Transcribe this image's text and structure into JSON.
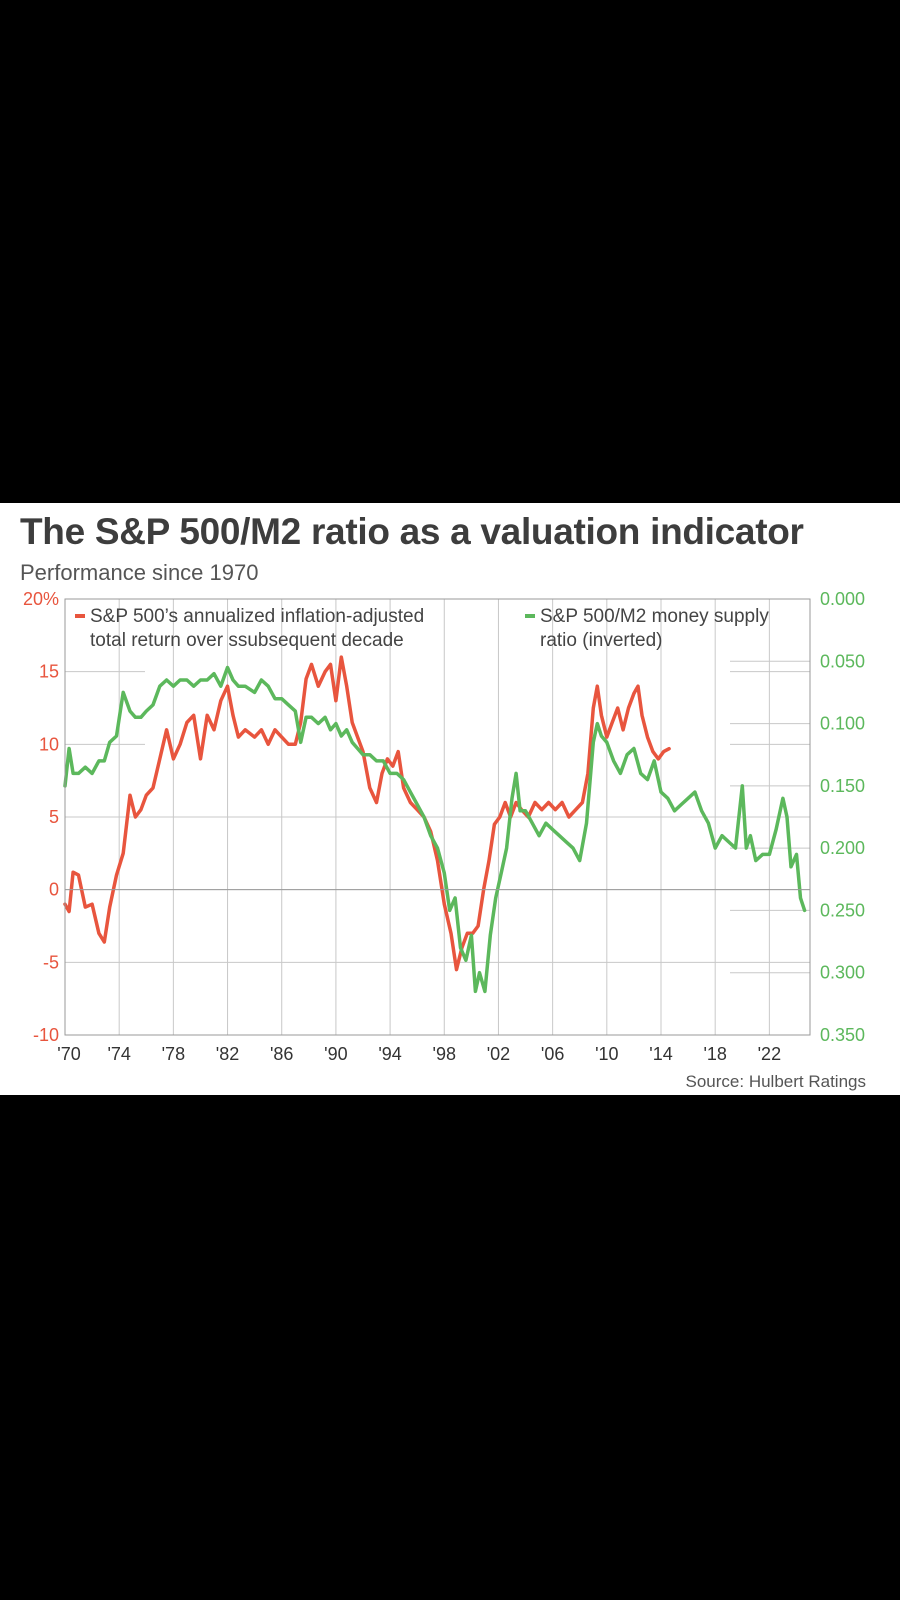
{
  "title": "The S&P 500/M2 ratio as a valuation indicator",
  "subtitle": "Performance since 1970",
  "source": "Source: Hulbert Ratings",
  "colors": {
    "red": "#e8553e",
    "green": "#5cb85c",
    "grid": "#c8c8c8",
    "axis": "#999999"
  },
  "chart_data": {
    "type": "line",
    "title": "The S&P 500/M2 ratio as a valuation indicator",
    "subtitle": "Performance since 1970",
    "x_axis": {
      "range": [
        1970,
        2025
      ],
      "ticks": [
        1970,
        1974,
        1978,
        1982,
        1986,
        1990,
        1994,
        1998,
        2002,
        2006,
        2010,
        2014,
        2018,
        2022
      ],
      "tick_labels": [
        "'70",
        "'74",
        "'78",
        "'82",
        "'86",
        "'90",
        "'94",
        "'98",
        "'02",
        "'06",
        "'10",
        "'14",
        "'18",
        "'22"
      ]
    },
    "y_left": {
      "range": [
        -10,
        20
      ],
      "ticks": [
        20,
        15,
        10,
        5,
        0,
        -5,
        -10
      ],
      "tick_labels": [
        "20%",
        "15",
        "10",
        "5",
        "0",
        "-5",
        "-10"
      ]
    },
    "y_right": {
      "range": [
        0.0,
        0.35
      ],
      "inverted": true,
      "ticks": [
        0.0,
        0.05,
        0.1,
        0.15,
        0.2,
        0.25,
        0.3,
        0.35
      ],
      "tick_labels": [
        "0.000",
        "0.050",
        "0.100",
        "0.150",
        "0.200",
        "0.250",
        "0.300",
        "0.350"
      ]
    },
    "grid": "vertical at x ticks, partial horizontal",
    "legend_placement": "top",
    "series": [
      {
        "name": "S&P 500's annualized inflation-adjusted total return over ssubsequent decade",
        "legend_lines": [
          "S&P 500’s annualized inflation-adjusted",
          "total return over ssubsequent decade"
        ],
        "axis": "left",
        "color": "#e8553e",
        "x": [
          1970.0,
          1970.3,
          1970.6,
          1971.0,
          1971.5,
          1972.0,
          1972.5,
          1972.9,
          1973.3,
          1973.8,
          1974.3,
          1974.8,
          1975.2,
          1975.6,
          1976.0,
          1976.5,
          1977.0,
          1977.5,
          1978.0,
          1978.5,
          1979.0,
          1979.5,
          1980.0,
          1980.5,
          1981.0,
          1981.5,
          1982.0,
          1982.4,
          1982.8,
          1983.3,
          1984.0,
          1984.5,
          1985.0,
          1985.5,
          1986.0,
          1986.5,
          1987.0,
          1987.4,
          1987.8,
          1988.2,
          1988.7,
          1989.2,
          1989.6,
          1990.0,
          1990.4,
          1990.8,
          1991.2,
          1991.6,
          1992.0,
          1992.5,
          1993.0,
          1993.4,
          1993.8,
          1994.2,
          1994.6,
          1995.0,
          1995.5,
          1996.0,
          1996.5,
          1997.0,
          1997.5,
          1998.0,
          1998.5,
          1998.9,
          1999.3,
          1999.7,
          2000.1,
          2000.5,
          2000.9,
          2001.3,
          2001.7,
          2002.1,
          2002.5,
          2002.9,
          2003.3,
          2003.7,
          2004.2,
          2004.7,
          2005.2,
          2005.7,
          2006.2,
          2006.7,
          2007.2,
          2007.7,
          2008.2,
          2008.6,
          2009.0,
          2009.3,
          2009.6,
          2010.0,
          2010.4,
          2010.8,
          2011.2,
          2011.6,
          2012.0,
          2012.3,
          2012.6,
          2013.0,
          2013.4,
          2013.8,
          2014.2,
          2014.6
        ],
        "y": [
          -1.0,
          -1.5,
          1.2,
          1.0,
          -1.2,
          -1.0,
          -3.0,
          -3.6,
          -1.2,
          1.0,
          2.5,
          6.5,
          5.0,
          5.5,
          6.5,
          7.0,
          9.0,
          11.0,
          9.0,
          10.0,
          11.5,
          12.0,
          9.0,
          12.0,
          11.0,
          13.0,
          14.0,
          12.0,
          10.5,
          11.0,
          10.5,
          11.0,
          10.0,
          11.0,
          10.5,
          10.0,
          10.0,
          11.5,
          14.5,
          15.5,
          14.0,
          15.0,
          15.5,
          13.0,
          16.0,
          14.0,
          11.5,
          10.5,
          9.5,
          7.0,
          6.0,
          8.0,
          9.0,
          8.5,
          9.5,
          7.0,
          6.0,
          5.5,
          5.0,
          4.0,
          2.0,
          -1.0,
          -3.0,
          -5.5,
          -4.0,
          -3.0,
          -3.0,
          -2.5,
          0.0,
          2.0,
          4.5,
          5.0,
          6.0,
          5.0,
          6.0,
          5.5,
          5.0,
          6.0,
          5.5,
          6.0,
          5.5,
          6.0,
          5.0,
          5.5,
          6.0,
          8.0,
          12.5,
          14.0,
          12.0,
          10.5,
          11.5,
          12.5,
          11.0,
          12.5,
          13.5,
          14.0,
          12.0,
          10.5,
          9.5,
          9.0,
          9.5,
          9.7
        ]
      },
      {
        "name": "S&P 500/M2 money supply ratio (inverted)",
        "legend_lines": [
          "S&P 500/M2 money supply",
          "ratio (inverted)"
        ],
        "axis": "right",
        "color": "#5cb85c",
        "x": [
          1970.0,
          1970.3,
          1970.6,
          1971.0,
          1971.5,
          1972.0,
          1972.5,
          1972.9,
          1973.3,
          1973.8,
          1974.3,
          1974.8,
          1975.2,
          1975.6,
          1976.0,
          1976.5,
          1977.0,
          1977.5,
          1978.0,
          1978.5,
          1979.0,
          1979.5,
          1980.0,
          1980.5,
          1981.0,
          1981.5,
          1982.0,
          1982.4,
          1982.8,
          1983.3,
          1984.0,
          1984.5,
          1985.0,
          1985.5,
          1986.0,
          1986.5,
          1987.0,
          1987.4,
          1987.8,
          1988.2,
          1988.7,
          1989.2,
          1989.6,
          1990.0,
          1990.4,
          1990.8,
          1991.2,
          1991.6,
          1992.0,
          1992.5,
          1993.0,
          1993.5,
          1994.0,
          1994.5,
          1995.0,
          1995.5,
          1996.0,
          1996.5,
          1997.0,
          1997.5,
          1998.0,
          1998.4,
          1998.8,
          1999.2,
          1999.6,
          2000.0,
          2000.3,
          2000.6,
          2001.0,
          2001.4,
          2001.8,
          2002.2,
          2002.6,
          2003.0,
          2003.3,
          2003.6,
          2004.0,
          2004.5,
          2005.0,
          2005.5,
          2006.0,
          2006.5,
          2007.0,
          2007.5,
          2008.0,
          2008.5,
          2009.0,
          2009.3,
          2009.6,
          2010.0,
          2010.5,
          2011.0,
          2011.5,
          2012.0,
          2012.5,
          2013.0,
          2013.5,
          2014.0,
          2014.5,
          2015.0,
          2015.5,
          2016.0,
          2016.5,
          2017.0,
          2017.5,
          2018.0,
          2018.5,
          2019.0,
          2019.5,
          2020.0,
          2020.3,
          2020.6,
          2021.0,
          2021.5,
          2022.0,
          2022.5,
          2023.0,
          2023.3,
          2023.6,
          2024.0,
          2024.3,
          2024.6
        ],
        "y": [
          0.15,
          0.12,
          0.14,
          0.14,
          0.135,
          0.14,
          0.13,
          0.13,
          0.115,
          0.11,
          0.075,
          0.09,
          0.095,
          0.095,
          0.09,
          0.085,
          0.07,
          0.065,
          0.07,
          0.065,
          0.065,
          0.07,
          0.065,
          0.065,
          0.06,
          0.07,
          0.055,
          0.065,
          0.07,
          0.07,
          0.075,
          0.065,
          0.07,
          0.08,
          0.08,
          0.085,
          0.09,
          0.115,
          0.095,
          0.095,
          0.1,
          0.095,
          0.105,
          0.1,
          0.11,
          0.105,
          0.115,
          0.12,
          0.125,
          0.125,
          0.13,
          0.13,
          0.14,
          0.14,
          0.145,
          0.155,
          0.165,
          0.175,
          0.19,
          0.2,
          0.22,
          0.25,
          0.24,
          0.28,
          0.29,
          0.27,
          0.315,
          0.3,
          0.315,
          0.27,
          0.24,
          0.22,
          0.2,
          0.16,
          0.14,
          0.17,
          0.17,
          0.18,
          0.19,
          0.18,
          0.185,
          0.19,
          0.195,
          0.2,
          0.21,
          0.18,
          0.115,
          0.1,
          0.11,
          0.115,
          0.13,
          0.14,
          0.125,
          0.12,
          0.14,
          0.145,
          0.13,
          0.155,
          0.16,
          0.17,
          0.165,
          0.16,
          0.155,
          0.17,
          0.18,
          0.2,
          0.19,
          0.195,
          0.2,
          0.15,
          0.2,
          0.19,
          0.21,
          0.205,
          0.205,
          0.185,
          0.16,
          0.175,
          0.215,
          0.205,
          0.24,
          0.25
        ]
      }
    ]
  }
}
